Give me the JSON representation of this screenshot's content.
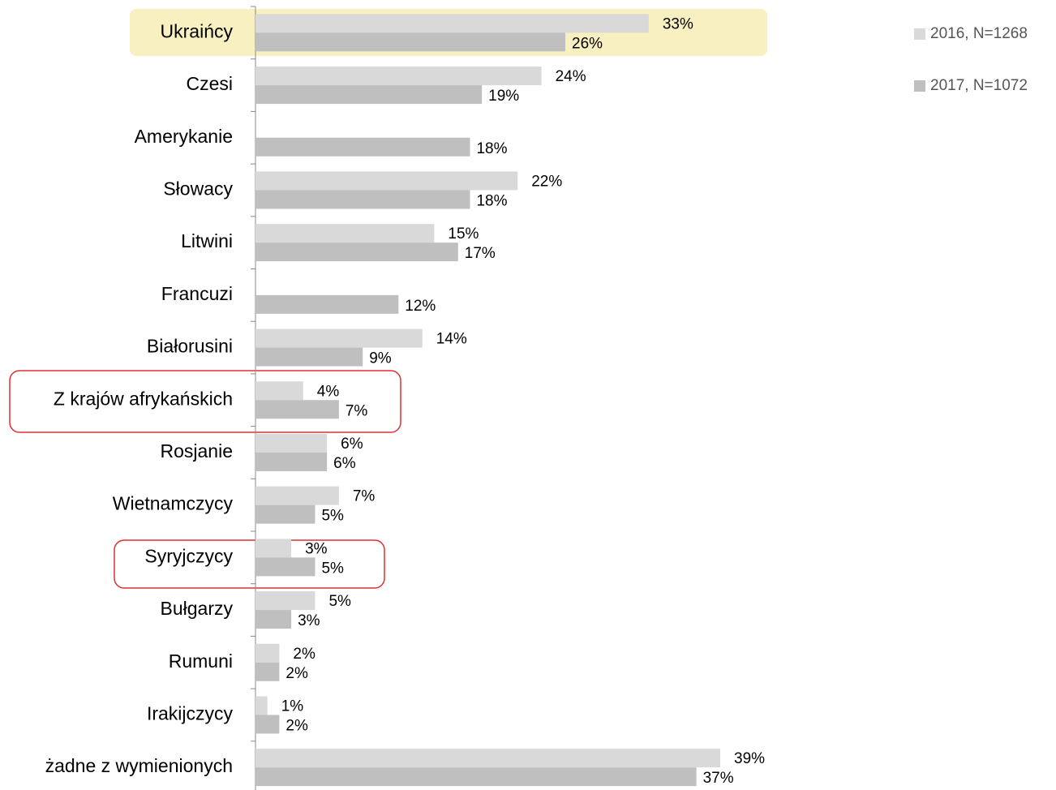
{
  "chart_data": {
    "type": "bar",
    "orientation": "horizontal",
    "categories": [
      "Ukraińcy",
      "Czesi",
      "Amerykanie",
      "Słowacy",
      "Litwini",
      "Francuzi",
      "Białorusini",
      "Z krajów afrykańskich",
      "Rosjanie",
      "Wietnamczycy",
      "Syryjczycy",
      "Bułgarzy",
      "Rumuni",
      "Irakijczycy",
      "żadne z wymienionych"
    ],
    "series": [
      {
        "name": "2016, N=1268",
        "color": "#d9d9d9",
        "values": [
          33,
          24,
          null,
          22,
          15,
          null,
          14,
          4,
          6,
          7,
          3,
          5,
          2,
          1,
          39
        ],
        "value_labels": [
          "33%",
          "24%",
          null,
          "22%",
          "15%",
          null,
          "14%",
          "4%",
          "6%",
          "7%",
          "3%",
          "5%",
          "2%",
          "1%",
          "39%"
        ]
      },
      {
        "name": "2017, N=1072",
        "color": "#bfbfbf",
        "values": [
          26,
          19,
          18,
          18,
          17,
          12,
          9,
          7,
          6,
          5,
          5,
          3,
          2,
          2,
          37
        ],
        "value_labels": [
          "26%",
          "19%",
          "18%",
          "18%",
          "17%",
          "12%",
          "9%",
          "7%",
          "6%",
          "5%",
          "5%",
          "3%",
          "2%",
          "2%",
          "37%"
        ]
      }
    ],
    "legend": "top-right"
  }
}
